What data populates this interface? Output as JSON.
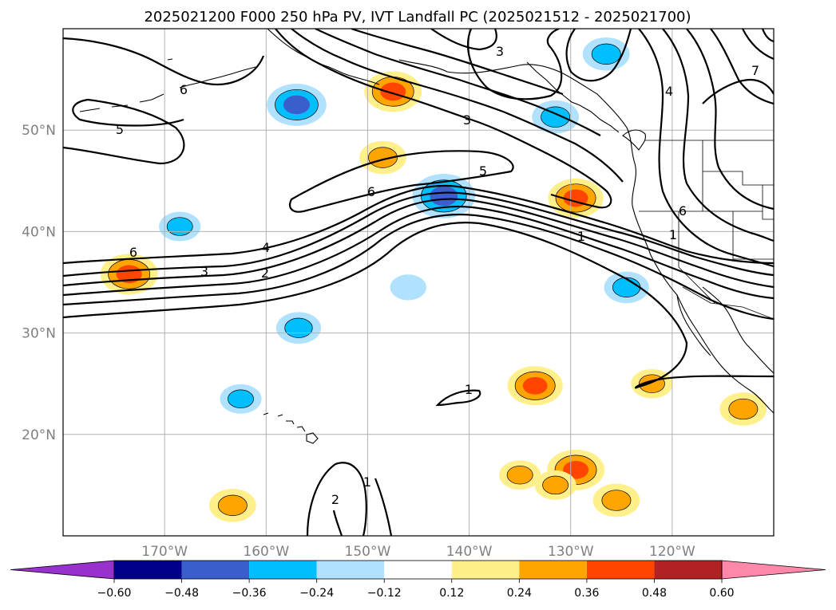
{
  "title": "2025021200 F000 250 hPa PV, IVT Landfall PC (2025021512 - 2025021700)",
  "map": {
    "lon_range": [
      -180,
      -110
    ],
    "lat_range": [
      10,
      60
    ],
    "lon_ticks": [
      {
        "value": -170,
        "label": "170°W"
      },
      {
        "value": -160,
        "label": "160°W"
      },
      {
        "value": -150,
        "label": "150°W"
      },
      {
        "value": -140,
        "label": "140°W"
      },
      {
        "value": -130,
        "label": "130°W"
      },
      {
        "value": -120,
        "label": "120°W"
      }
    ],
    "lat_ticks": [
      {
        "value": 20,
        "label": "20°N"
      },
      {
        "value": 30,
        "label": "30°N"
      },
      {
        "value": 40,
        "label": "40°N"
      },
      {
        "value": 50,
        "label": "50°N"
      }
    ],
    "gridlines": true
  },
  "colorbar": {
    "boundaries": [
      -0.6,
      -0.48,
      -0.36,
      -0.24,
      -0.12,
      0.12,
      0.24,
      0.36,
      0.48,
      0.6
    ],
    "tick_labels": [
      "−0.60",
      "−0.48",
      "−0.36",
      "−0.24",
      "−0.12",
      "0.12",
      "0.24",
      "0.36",
      "0.48",
      "0.60"
    ],
    "colors": [
      "#9932cc",
      "#00008b",
      "#3a5fcd",
      "#00bfff",
      "#b0e2ff",
      "#ffffff",
      "#fff08c",
      "#ffa500",
      "#ff4500",
      "#b22222",
      "#ff88aa"
    ],
    "extend": "both"
  },
  "contour_labels": [
    "6",
    "5",
    "3",
    "5",
    "6",
    "4",
    "3",
    "2",
    "1",
    "6",
    "1",
    "1",
    "6",
    "7",
    "3",
    "2",
    "1",
    "4"
  ],
  "anomalies": [
    {
      "lon": -147.5,
      "lat": 53.8,
      "value": 0.4
    },
    {
      "lon": -157,
      "lat": 52.5,
      "value": -0.42
    },
    {
      "lon": -173.5,
      "lat": 35.8,
      "value": 0.4
    },
    {
      "lon": -142.5,
      "lat": 43.5,
      "value": -0.45
    },
    {
      "lon": -148.5,
      "lat": 47.3,
      "value": 0.3
    },
    {
      "lon": -129.5,
      "lat": 43.3,
      "value": 0.38
    },
    {
      "lon": -131.5,
      "lat": 51.3,
      "value": -0.3
    },
    {
      "lon": -126.5,
      "lat": 57.5,
      "value": -0.3
    },
    {
      "lon": -129.5,
      "lat": 16.5,
      "value": 0.4
    },
    {
      "lon": -133.5,
      "lat": 24.8,
      "value": 0.38
    },
    {
      "lon": -168.5,
      "lat": 40.5,
      "value": -0.25
    },
    {
      "lon": -156.8,
      "lat": 30.5,
      "value": -0.28
    },
    {
      "lon": -162.5,
      "lat": 23.5,
      "value": -0.25
    },
    {
      "lon": -163.3,
      "lat": 13,
      "value": 0.3
    },
    {
      "lon": -125.5,
      "lat": 13.5,
      "value": 0.3
    },
    {
      "lon": -124.5,
      "lat": 34.5,
      "value": -0.28
    },
    {
      "lon": -113,
      "lat": 22.5,
      "value": 0.3
    },
    {
      "lon": -146,
      "lat": 34.5,
      "value": -0.2
    },
    {
      "lon": -135,
      "lat": 16,
      "value": 0.25
    },
    {
      "lon": -131.5,
      "lat": 15,
      "value": 0.25
    },
    {
      "lon": -122,
      "lat": 25,
      "value": 0.25
    }
  ]
}
